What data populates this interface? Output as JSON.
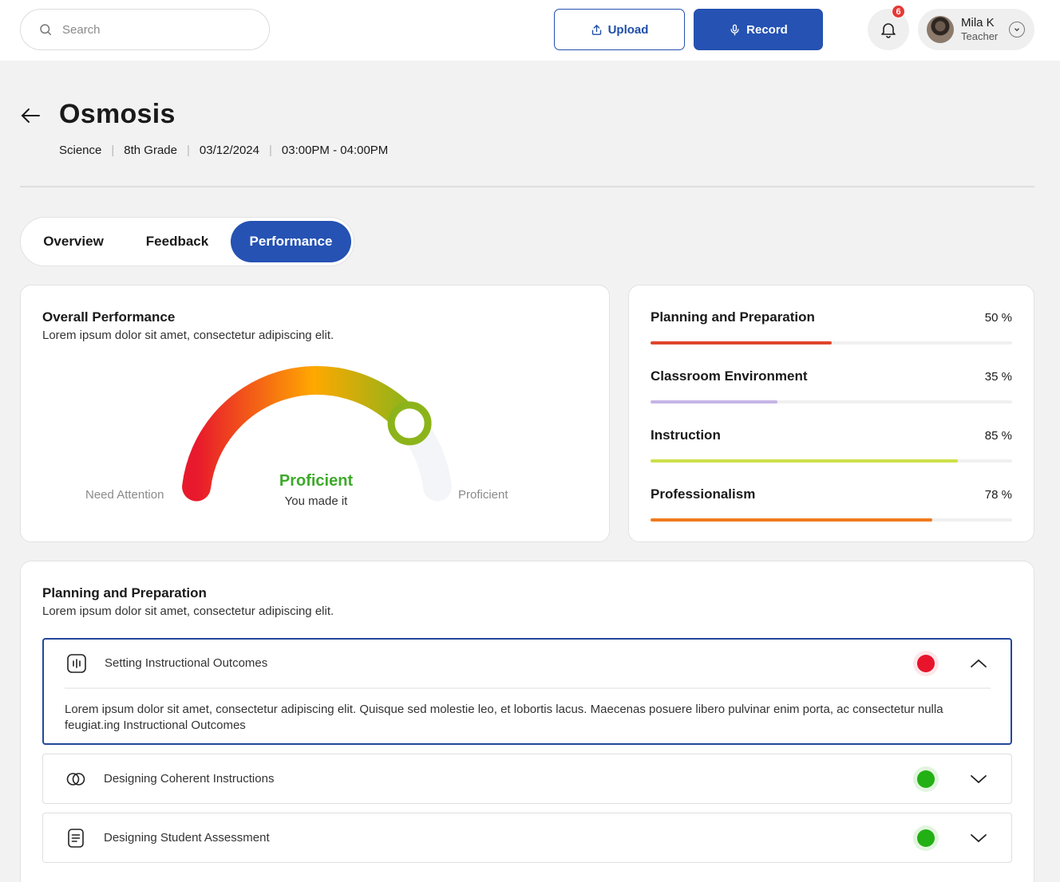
{
  "header": {
    "search_placeholder": "Search",
    "upload_label": "Upload",
    "record_label": "Record",
    "notification_count": "6",
    "user": {
      "name": "Mila K",
      "role": "Teacher"
    }
  },
  "lesson": {
    "title": "Osmosis",
    "meta": [
      "Science",
      "8th Grade",
      "03/12/2024",
      "03:00PM - 04:00PM"
    ]
  },
  "tabs": [
    {
      "label": "Overview",
      "active": false
    },
    {
      "label": "Feedback",
      "active": false
    },
    {
      "label": "Performance",
      "active": true
    }
  ],
  "overall": {
    "title": "Overall Performance",
    "subtitle": "Lorem ipsum dolor sit amet, consectetur adipiscing elit.",
    "gauge": {
      "level_fraction": 0.8,
      "left_label": "Need Attention",
      "right_label": "Proficient",
      "status": "Proficient",
      "caption": "You made it",
      "colors": {
        "start": "#e8192c",
        "mid": "#ffa800",
        "end": "#8cb41a",
        "track": "#f3f5f8",
        "status": "#3daa2a"
      }
    }
  },
  "metrics": [
    {
      "label": "Planning and Preparation",
      "value_text": "50 %",
      "value": 50,
      "color": "#e0452e"
    },
    {
      "label": "Classroom Environment",
      "value_text": "35 %",
      "value": 35,
      "color": "#c6b4e6"
    },
    {
      "label": "Instruction",
      "value_text": "85 %",
      "value": 85,
      "color": "#cde04a"
    },
    {
      "label": "Professionalism",
      "value_text": "78 %",
      "value": 78,
      "color": "#f07a1e"
    }
  ],
  "planning": {
    "title": "Planning and Preparation",
    "subtitle": "Lorem ipsum dolor sit amet, consectetur adipiscing elit.",
    "items": [
      {
        "title": "Setting Instructional Outcomes",
        "icon": "audio-bars-icon",
        "status_color": "#e8142c",
        "expanded": true,
        "body": "Lorem ipsum dolor sit amet, consectetur adipiscing elit. Quisque sed molestie leo, et lobortis lacus. Maecenas posuere libero pulvinar enim porta, ac consectetur nulla feugiat.ing Instructional Outcomes"
      },
      {
        "title": "Designing Coherent Instructions",
        "icon": "overlap-circles-icon",
        "status_color": "#22b014",
        "expanded": false
      },
      {
        "title": "Designing Student Assessment",
        "icon": "document-icon",
        "status_color": "#22b014",
        "expanded": false
      }
    ]
  }
}
